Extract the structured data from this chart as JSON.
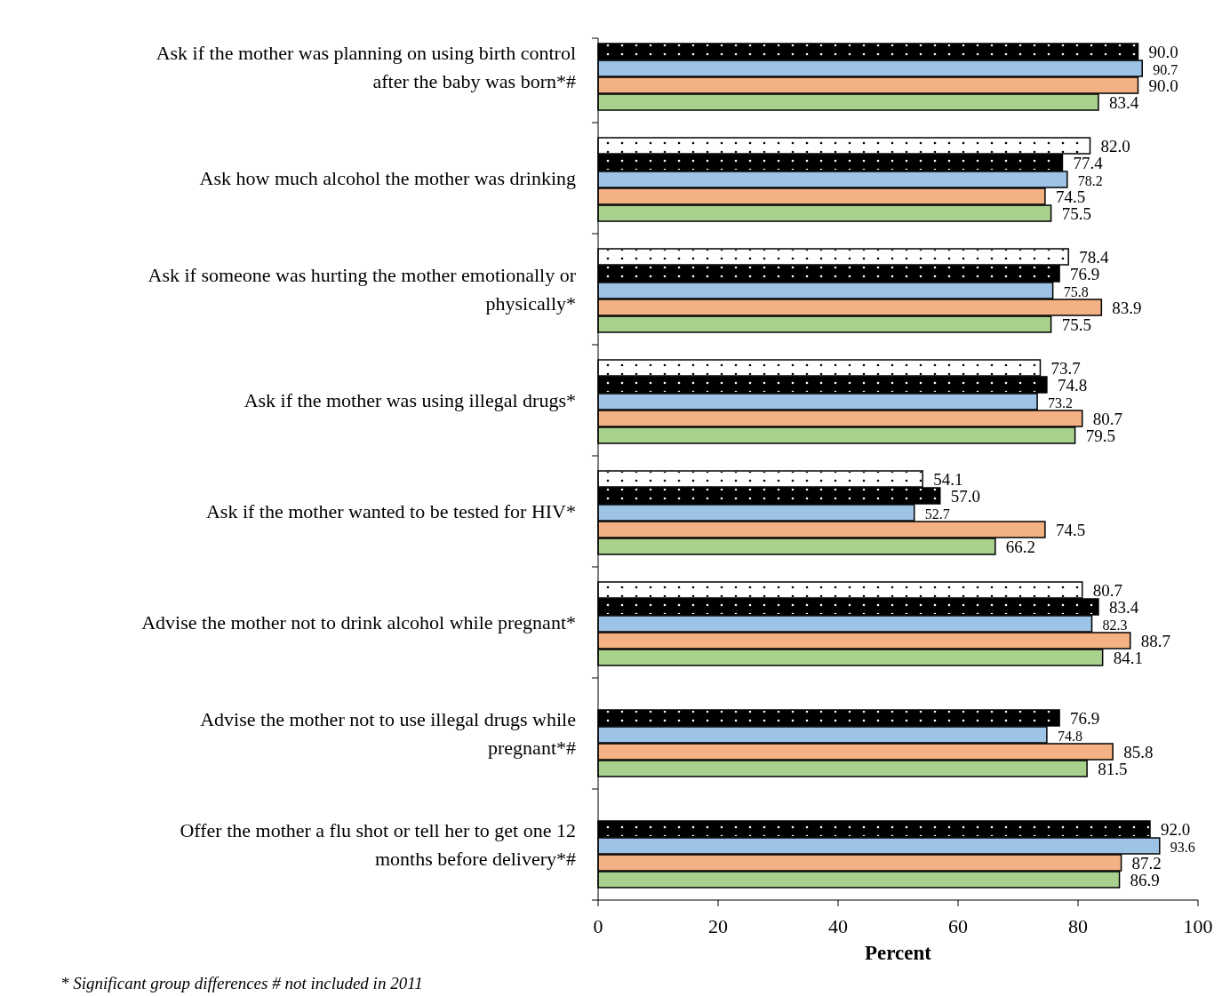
{
  "chart_data": {
    "type": "bar",
    "orientation": "horizontal",
    "xlabel": "Percent",
    "categories": [
      "Ask if the mother was planning on using birth control after the baby was born*#",
      "Ask how much alcohol the mother was drinking",
      "Ask if someone was hurting the mother emotionally or physically*",
      "Ask if the mother was using illegal drugs*",
      "Ask if the mother wanted to be tested for HIV*",
      "Advise the mother not to drink alcohol while pregnant*",
      "Advise the mother not to use illegal drugs while pregnant*#",
      "Offer the mother a flu shot or tell her to get one 12 months before delivery*#"
    ],
    "series": [
      {
        "color": "#ffffff",
        "values": [
          null,
          82.0,
          78.4,
          73.7,
          54.1,
          80.7,
          null,
          null
        ],
        "value_labels": [
          null,
          "82.0",
          "78.4",
          "73.7",
          "54.1",
          "80.7",
          null,
          null
        ]
      },
      {
        "color": "#000000",
        "values": [
          90.0,
          77.4,
          76.9,
          74.8,
          57.0,
          83.4,
          76.9,
          92.0
        ],
        "value_labels": [
          "90.0",
          "77.4",
          "76.9",
          "74.8",
          "57.0",
          "83.4",
          "76.9",
          "92.0"
        ]
      },
      {
        "color": "#9dc3e6",
        "values": [
          90.7,
          78.2,
          75.8,
          73.2,
          52.7,
          82.3,
          74.8,
          93.6
        ],
        "value_labels": [
          "90.7",
          "78.2",
          "75.8",
          "73.2",
          "52.7",
          "82.3",
          "74.8",
          "93.6"
        ]
      },
      {
        "color": "#f4b183",
        "values": [
          90.0,
          74.5,
          83.9,
          80.7,
          74.5,
          88.7,
          85.8,
          87.2
        ],
        "value_labels": [
          "90.0",
          "74.5",
          "83.9",
          "80.7",
          "74.5",
          "88.7",
          "85.8",
          "87.2"
        ]
      },
      {
        "color": "#a9d18e",
        "values": [
          83.4,
          75.5,
          75.5,
          79.5,
          66.2,
          84.1,
          81.5,
          86.9
        ],
        "value_labels": [
          "83.4",
          "75.5",
          "75.5",
          "79.5",
          "66.2",
          "84.1",
          "81.5",
          "86.9"
        ]
      }
    ],
    "xlim": [
      0,
      100
    ],
    "xticks": [
      0,
      20,
      40,
      60,
      80,
      100
    ],
    "grid": false,
    "annotations": [
      "* Significant group differences # not included in 2011"
    ]
  }
}
